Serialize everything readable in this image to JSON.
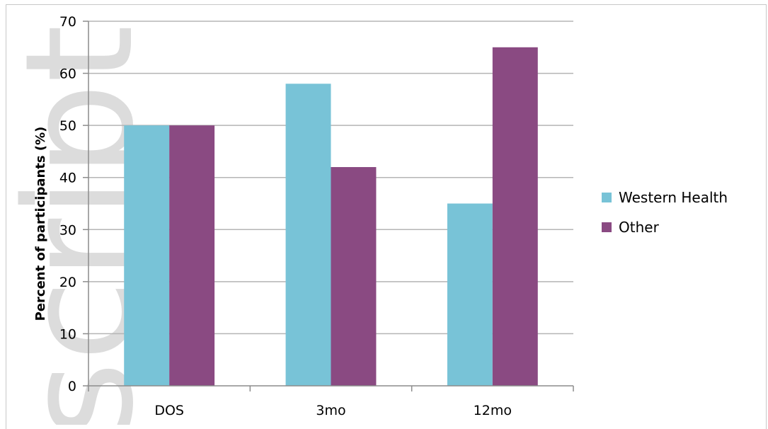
{
  "chart_data": {
    "type": "bar",
    "title": "",
    "xlabel": "",
    "ylabel": "Percent of participants (%)",
    "categories": [
      "DOS",
      "3mo",
      "12mo"
    ],
    "series": [
      {
        "name": "Western Health",
        "values": [
          50,
          58,
          35
        ]
      },
      {
        "name": "Other",
        "values": [
          50,
          42,
          65
        ]
      }
    ],
    "ylim": [
      0,
      70
    ],
    "yticks": [
      0,
      10,
      20,
      30,
      40,
      50,
      60,
      70
    ],
    "grid": true,
    "legend_position": "right",
    "colors": {
      "Western Health": "#78c3d7",
      "Other": "#8a4a82"
    }
  },
  "watermark": {
    "text": "script"
  }
}
